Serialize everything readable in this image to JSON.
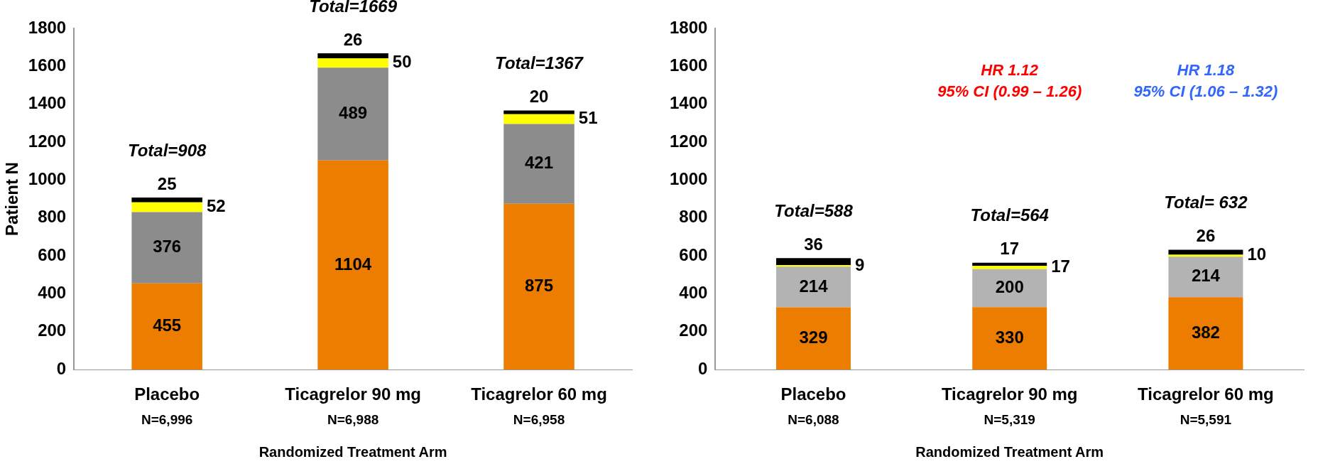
{
  "chart_data": [
    {
      "type": "bar",
      "stacked": true,
      "ylabel": "Patient N",
      "xlabel": "Randomized Treatment Arm",
      "categories": [
        "Placebo",
        "Ticagrelor 90 mg",
        "Ticagrelor 60 mg"
      ],
      "series": [
        {
          "color": "#ed7d00",
          "values": [
            455,
            1104,
            875
          ]
        },
        {
          "color": "#8c8c8c",
          "values": [
            376,
            489,
            421
          ]
        },
        {
          "color": "#ffff00",
          "values": [
            52,
            50,
            51
          ]
        },
        {
          "color": "#000000",
          "values": [
            25,
            26,
            20
          ]
        }
      ],
      "ylim": [
        0,
        1800
      ],
      "yticks": [
        0,
        200,
        400,
        600,
        800,
        1000,
        1200,
        1400,
        1600,
        1800
      ],
      "grid": false,
      "legend": false,
      "data_labels": true,
      "totals": [
        "Total=908",
        "Total=1669",
        "Total=1367"
      ],
      "annotations": [
        "N=6,996",
        "N=6,988",
        "N=6,958"
      ]
    },
    {
      "type": "bar",
      "stacked": true,
      "xlabel": "Randomized Treatment Arm",
      "categories": [
        "Placebo",
        "Ticagrelor 90 mg",
        "Ticagrelor 60 mg"
      ],
      "series": [
        {
          "color": "#ed7d00",
          "values": [
            329,
            330,
            382
          ]
        },
        {
          "color": "#b3b3b3",
          "values": [
            214,
            200,
            214
          ]
        },
        {
          "color": "#ffff00",
          "values": [
            9,
            17,
            10
          ]
        },
        {
          "color": "#000000",
          "values": [
            36,
            17,
            26
          ]
        }
      ],
      "ylim": [
        0,
        1800
      ],
      "yticks": [
        0,
        200,
        400,
        600,
        800,
        1000,
        1200,
        1400,
        1600,
        1800
      ],
      "grid": false,
      "legend": false,
      "data_labels": true,
      "totals": [
        "Total=588",
        "Total=564",
        "Total= 632"
      ],
      "annotations": [
        "N=6,088",
        "N=5,319",
        "N=5,591",
        "HR 1.12",
        "95% CI (0.99 – 1.26)",
        "HR 1.18",
        "95% CI (1.06 – 1.32)"
      ]
    }
  ]
}
